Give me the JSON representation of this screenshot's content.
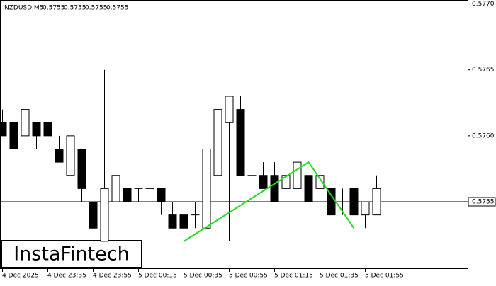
{
  "chart_data": {
    "type": "candlestick",
    "title": "NZDUSD,M5",
    "header_ohlc": [
      0.5755,
      0.5755,
      0.5755,
      0.5755
    ],
    "watermark": "InstaFintech",
    "categories": [
      "4 Dec 2025",
      null,
      null,
      null,
      "4 Dec 23:35",
      null,
      null,
      null,
      "4 Dec 23:55",
      null,
      null,
      null,
      "5 Dec 00:15",
      null,
      null,
      null,
      "5 Dec 00:35",
      null,
      null,
      null,
      "5 Dec 00:55",
      null,
      null,
      null,
      "5 Dec 01:15",
      null,
      null,
      null,
      "5 Dec 01:35",
      null,
      null,
      null,
      "5 Dec 01:55",
      null
    ],
    "open": [
      0.5761,
      0.5761,
      0.576,
      0.5761,
      0.5761,
      0.5759,
      0.5757,
      0.5759,
      0.5755,
      0.5752,
      0.5755,
      0.5756,
      0.5756,
      0.5756,
      0.5756,
      0.5754,
      0.5754,
      0.5754,
      0.5753,
      0.5757,
      0.5761,
      0.5762,
      0.5757,
      0.5757,
      0.5757,
      0.5756,
      0.5756,
      0.5757,
      0.5756,
      0.5756,
      0.5755,
      0.5756,
      0.5754,
      0.5754
    ],
    "high": [
      0.5762,
      0.5761,
      0.5762,
      0.5761,
      0.5761,
      0.576,
      0.576,
      0.5759,
      0.5755,
      0.5765,
      0.5757,
      0.5756,
      0.5756,
      0.5756,
      0.5756,
      0.5755,
      0.5754,
      0.5755,
      0.5759,
      0.5762,
      0.5763,
      0.5763,
      0.5758,
      0.5758,
      0.5758,
      0.5758,
      0.5758,
      0.5757,
      0.5757,
      0.5756,
      0.5756,
      0.5757,
      0.5755,
      0.5757
    ],
    "low": [
      0.576,
      0.5759,
      0.576,
      0.5759,
      0.576,
      0.5758,
      0.5757,
      0.5755,
      0.5753,
      0.5752,
      0.5755,
      0.5755,
      0.5755,
      0.5754,
      0.5754,
      0.5753,
      0.5752,
      0.5753,
      0.5753,
      0.5757,
      0.5752,
      0.5757,
      0.5756,
      0.5756,
      0.5755,
      0.5755,
      0.5756,
      0.5755,
      0.5755,
      0.5754,
      0.5754,
      0.5753,
      0.5753,
      0.5754
    ],
    "close": [
      0.576,
      0.5759,
      0.5762,
      0.576,
      0.576,
      0.5758,
      0.576,
      0.5756,
      0.5753,
      0.5756,
      0.5757,
      0.5755,
      0.5756,
      0.5756,
      0.5755,
      0.5753,
      0.5753,
      0.5754,
      0.5759,
      0.5762,
      0.5763,
      0.5757,
      0.5757,
      0.5756,
      0.5755,
      0.5757,
      0.5758,
      0.5755,
      0.5757,
      0.5754,
      0.5755,
      0.5754,
      0.5755,
      0.5756
    ],
    "up_color": "#ffffff",
    "down_color": "#000000",
    "ylim": [
      0.57499,
      0.57703
    ],
    "yticks": [
      {
        "value": 0.577,
        "label": "0.5770"
      },
      0.5765,
      {
        "value": 0.576,
        "label": "0.5760"
      }
    ],
    "last_price": 0.5755,
    "pattern": {
      "color": "#22dd22",
      "x": [
        16,
        27,
        31
      ],
      "values": [
        0.5752,
        0.5758,
        0.5753
      ]
    }
  }
}
